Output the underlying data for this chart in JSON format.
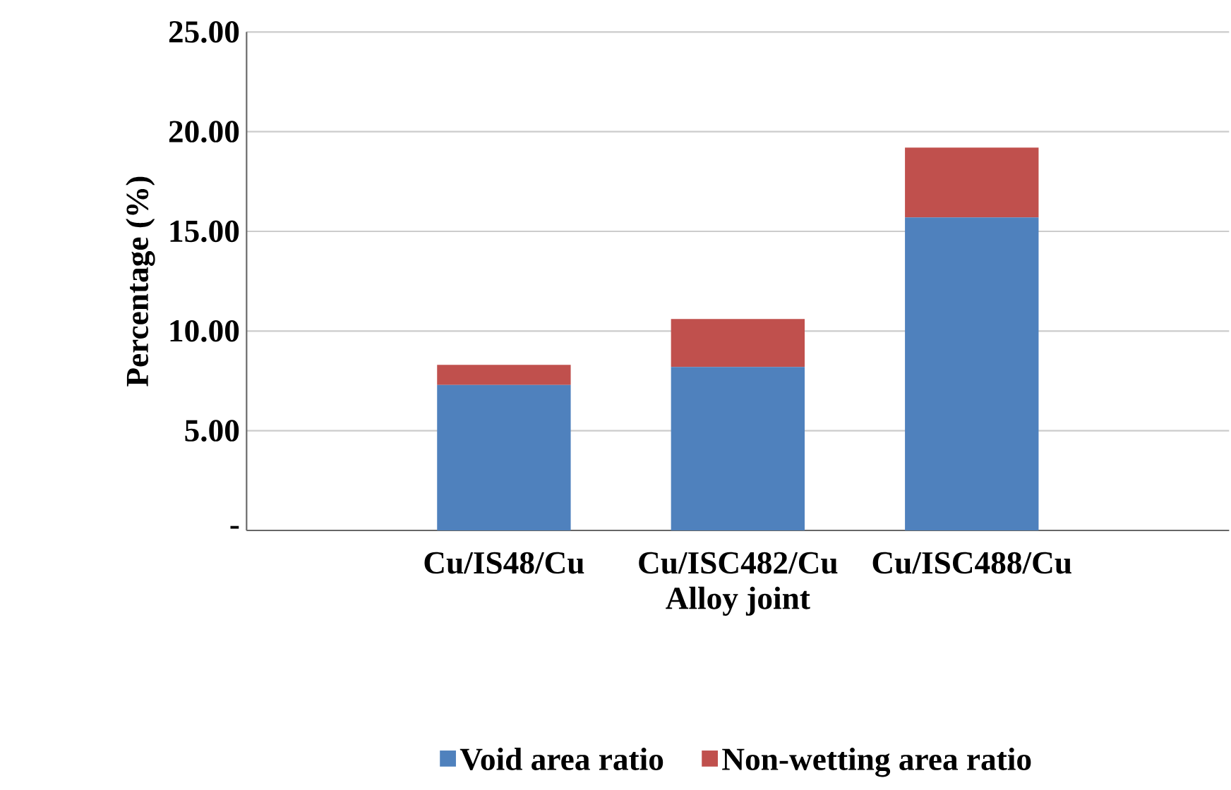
{
  "chart_data": {
    "type": "bar",
    "stacked": true,
    "xlabel": "Alloy joint",
    "ylabel": "Percentage (%)",
    "categories": [
      "Cu/IS48/Cu",
      "Cu/ISC482/Cu",
      "Cu/ISC488/Cu"
    ],
    "series": [
      {
        "name": "Void area ratio",
        "color": "#4f81bd",
        "values": [
          7.3,
          8.2,
          15.7
        ]
      },
      {
        "name": "Non-wetting area ratio",
        "color": "#c0504d",
        "values": [
          1.0,
          2.4,
          3.5
        ]
      }
    ],
    "ylim": [
      0,
      25
    ],
    "yticks": [
      {
        "value": 0,
        "label": "-"
      },
      {
        "value": 5,
        "label": "5.00"
      },
      {
        "value": 10,
        "label": "10.00"
      },
      {
        "value": 15,
        "label": "15.00"
      },
      {
        "value": 20,
        "label": "20.00"
      },
      {
        "value": 25,
        "label": "25.00"
      }
    ],
    "grid": "y",
    "legend": "bottom"
  }
}
